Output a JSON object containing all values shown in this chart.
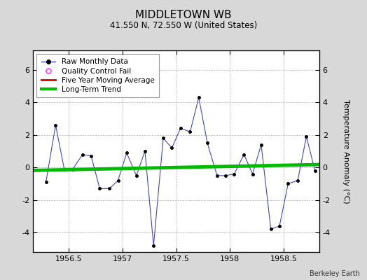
{
  "title": "MIDDLETOWN WB",
  "subtitle": "41.550 N, 72.550 W (United States)",
  "ylabel": "Temperature Anomaly (°C)",
  "credit": "Berkeley Earth",
  "background_color": "#d8d8d8",
  "plot_bg_color": "#ffffff",
  "xlim": [
    1956.17,
    1958.83
  ],
  "ylim": [
    -5.2,
    7.2
  ],
  "yticks": [
    -4,
    -2,
    0,
    2,
    4,
    6
  ],
  "xticks": [
    1956.5,
    1957.0,
    1957.5,
    1958.0,
    1958.5
  ],
  "xticklabels": [
    "1956.5",
    "1957",
    "1957.5",
    "1958",
    "1958.5"
  ],
  "raw_x": [
    1956.29,
    1956.38,
    1956.46,
    1956.54,
    1956.63,
    1956.71,
    1956.79,
    1956.88,
    1956.96,
    1957.04,
    1957.13,
    1957.21,
    1957.29,
    1957.38,
    1957.46,
    1957.54,
    1957.63,
    1957.71,
    1957.79,
    1957.88,
    1957.96,
    1958.04,
    1958.13,
    1958.21,
    1958.29,
    1958.38,
    1958.46,
    1958.54,
    1958.63,
    1958.71,
    1958.79
  ],
  "raw_y": [
    -0.9,
    2.6,
    -0.1,
    -0.1,
    0.8,
    0.7,
    -1.3,
    -1.3,
    -0.8,
    0.9,
    -0.5,
    1.0,
    -4.8,
    1.8,
    1.2,
    2.4,
    2.2,
    4.3,
    1.5,
    -0.5,
    -0.5,
    -0.4,
    0.8,
    -0.4,
    1.4,
    -3.8,
    -3.6,
    -1.0,
    -0.8,
    1.9,
    -0.2
  ],
  "trend_x": [
    1956.17,
    1958.83
  ],
  "trend_y": [
    -0.18,
    0.18
  ],
  "raw_line_color": "#4444cc",
  "raw_marker_color": "#000000",
  "trend_color": "#00bb00",
  "moving_avg_color": "#dd0000",
  "qc_fail_color": "#ff44ff",
  "title_fontsize": 11,
  "subtitle_fontsize": 8.5,
  "tick_fontsize": 8,
  "ylabel_fontsize": 8,
  "legend_fontsize": 7.5,
  "credit_fontsize": 7
}
